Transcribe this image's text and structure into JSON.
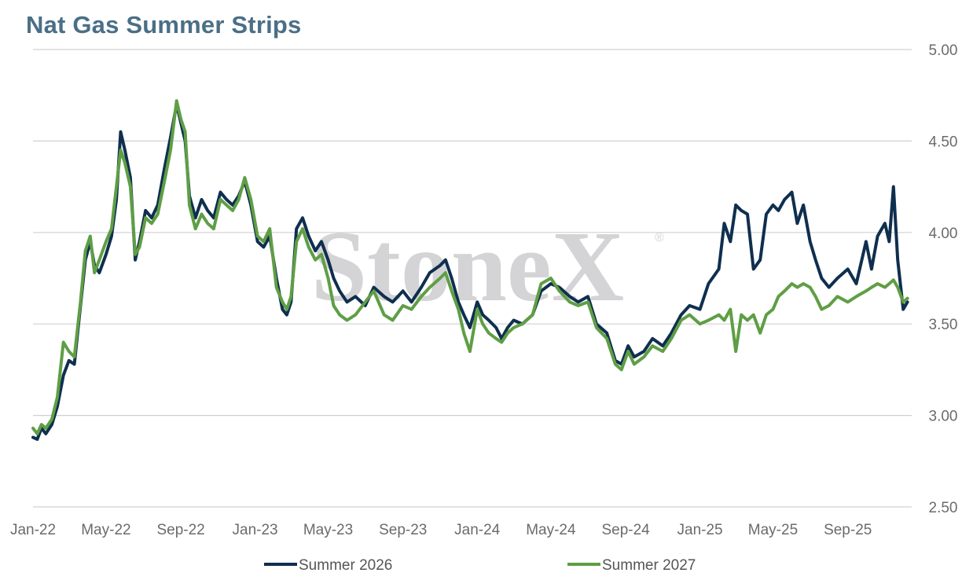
{
  "chart_data": {
    "type": "line",
    "title": "Nat Gas Summer Strips",
    "watermark": "StoneX",
    "watermark_mark": "®",
    "x_tick_labels": [
      "Jan-22",
      "May-22",
      "Sep-22",
      "Jan-23",
      "May-23",
      "Sep-23",
      "Jan-24",
      "May-24",
      "Sep-24",
      "Jan-25",
      "May-25",
      "Sep-25"
    ],
    "y_tick_labels": [
      "5.00",
      "4.50",
      "4.00",
      "3.50",
      "3.00",
      "2.50"
    ],
    "y_ticks": [
      5.0,
      4.5,
      4.0,
      3.5,
      3.0,
      2.5
    ],
    "ylim": [
      2.5,
      5.0
    ],
    "xlim": [
      "2022-01-01",
      "2025-12-15"
    ],
    "grid": true,
    "legend_position": "bottom",
    "series": [
      {
        "name": "Summer 2026",
        "color": "#0f2f4f",
        "points": [
          [
            "2022-01-01",
            2.88
          ],
          [
            "2022-01-08",
            2.87
          ],
          [
            "2022-01-15",
            2.93
          ],
          [
            "2022-01-22",
            2.9
          ],
          [
            "2022-02-01",
            2.95
          ],
          [
            "2022-02-10",
            3.05
          ],
          [
            "2022-02-20",
            3.22
          ],
          [
            "2022-03-01",
            3.3
          ],
          [
            "2022-03-10",
            3.28
          ],
          [
            "2022-03-20",
            3.6
          ],
          [
            "2022-03-28",
            3.85
          ],
          [
            "2022-04-05",
            3.95
          ],
          [
            "2022-04-12",
            3.82
          ],
          [
            "2022-04-20",
            3.78
          ],
          [
            "2022-05-01",
            3.88
          ],
          [
            "2022-05-10",
            3.98
          ],
          [
            "2022-05-18",
            4.18
          ],
          [
            "2022-05-25",
            4.55
          ],
          [
            "2022-06-01",
            4.45
          ],
          [
            "2022-06-10",
            4.3
          ],
          [
            "2022-06-18",
            3.85
          ],
          [
            "2022-06-25",
            3.95
          ],
          [
            "2022-07-05",
            4.12
          ],
          [
            "2022-07-15",
            4.08
          ],
          [
            "2022-07-25",
            4.15
          ],
          [
            "2022-08-05",
            4.35
          ],
          [
            "2022-08-15",
            4.52
          ],
          [
            "2022-08-25",
            4.7
          ],
          [
            "2022-09-01",
            4.6
          ],
          [
            "2022-09-08",
            4.5
          ],
          [
            "2022-09-15",
            4.2
          ],
          [
            "2022-09-25",
            4.08
          ],
          [
            "2022-10-05",
            4.18
          ],
          [
            "2022-10-15",
            4.12
          ],
          [
            "2022-10-25",
            4.08
          ],
          [
            "2022-11-05",
            4.22
          ],
          [
            "2022-11-15",
            4.18
          ],
          [
            "2022-11-25",
            4.15
          ],
          [
            "2022-12-05",
            4.2
          ],
          [
            "2022-12-15",
            4.28
          ],
          [
            "2022-12-25",
            4.15
          ],
          [
            "2023-01-05",
            3.95
          ],
          [
            "2023-01-15",
            3.92
          ],
          [
            "2023-01-25",
            3.98
          ],
          [
            "2023-02-05",
            3.75
          ],
          [
            "2023-02-15",
            3.58
          ],
          [
            "2023-02-22",
            3.55
          ],
          [
            "2023-03-01",
            3.62
          ],
          [
            "2023-03-10",
            4.02
          ],
          [
            "2023-03-20",
            4.08
          ],
          [
            "2023-03-30",
            3.98
          ],
          [
            "2023-04-10",
            3.9
          ],
          [
            "2023-04-20",
            3.95
          ],
          [
            "2023-05-01",
            3.85
          ],
          [
            "2023-05-10",
            3.75
          ],
          [
            "2023-05-20",
            3.68
          ],
          [
            "2023-06-01",
            3.62
          ],
          [
            "2023-06-15",
            3.65
          ],
          [
            "2023-07-01",
            3.6
          ],
          [
            "2023-07-15",
            3.7
          ],
          [
            "2023-08-01",
            3.65
          ],
          [
            "2023-08-15",
            3.62
          ],
          [
            "2023-09-01",
            3.68
          ],
          [
            "2023-09-15",
            3.62
          ],
          [
            "2023-10-01",
            3.7
          ],
          [
            "2023-10-15",
            3.78
          ],
          [
            "2023-11-01",
            3.82
          ],
          [
            "2023-11-10",
            3.85
          ],
          [
            "2023-11-20",
            3.75
          ],
          [
            "2023-12-01",
            3.62
          ],
          [
            "2023-12-10",
            3.55
          ],
          [
            "2023-12-20",
            3.48
          ],
          [
            "2024-01-01",
            3.62
          ],
          [
            "2024-01-10",
            3.55
          ],
          [
            "2024-01-20",
            3.52
          ],
          [
            "2024-02-01",
            3.48
          ],
          [
            "2024-02-10",
            3.42
          ],
          [
            "2024-02-20",
            3.48
          ],
          [
            "2024-03-01",
            3.52
          ],
          [
            "2024-03-15",
            3.5
          ],
          [
            "2024-04-01",
            3.55
          ],
          [
            "2024-04-15",
            3.68
          ],
          [
            "2024-05-01",
            3.72
          ],
          [
            "2024-05-15",
            3.7
          ],
          [
            "2024-06-01",
            3.65
          ],
          [
            "2024-06-15",
            3.62
          ],
          [
            "2024-07-01",
            3.65
          ],
          [
            "2024-07-15",
            3.5
          ],
          [
            "2024-08-01",
            3.45
          ],
          [
            "2024-08-15",
            3.3
          ],
          [
            "2024-08-25",
            3.28
          ],
          [
            "2024-09-05",
            3.38
          ],
          [
            "2024-09-15",
            3.32
          ],
          [
            "2024-10-01",
            3.35
          ],
          [
            "2024-10-15",
            3.42
          ],
          [
            "2024-11-01",
            3.38
          ],
          [
            "2024-11-15",
            3.45
          ],
          [
            "2024-12-01",
            3.55
          ],
          [
            "2024-12-15",
            3.6
          ],
          [
            "2025-01-01",
            3.58
          ],
          [
            "2025-01-15",
            3.72
          ],
          [
            "2025-02-01",
            3.8
          ],
          [
            "2025-02-10",
            4.05
          ],
          [
            "2025-02-20",
            3.95
          ],
          [
            "2025-03-01",
            4.15
          ],
          [
            "2025-03-10",
            4.12
          ],
          [
            "2025-03-20",
            4.1
          ],
          [
            "2025-03-30",
            3.8
          ],
          [
            "2025-04-10",
            3.85
          ],
          [
            "2025-04-20",
            4.1
          ],
          [
            "2025-05-01",
            4.15
          ],
          [
            "2025-05-10",
            4.12
          ],
          [
            "2025-05-20",
            4.18
          ],
          [
            "2025-06-01",
            4.22
          ],
          [
            "2025-06-10",
            4.05
          ],
          [
            "2025-06-20",
            4.15
          ],
          [
            "2025-07-01",
            3.95
          ],
          [
            "2025-07-10",
            3.85
          ],
          [
            "2025-07-20",
            3.75
          ],
          [
            "2025-08-01",
            3.7
          ],
          [
            "2025-08-15",
            3.75
          ],
          [
            "2025-09-01",
            3.8
          ],
          [
            "2025-09-15",
            3.72
          ],
          [
            "2025-10-01",
            3.95
          ],
          [
            "2025-10-10",
            3.8
          ],
          [
            "2025-10-20",
            3.98
          ],
          [
            "2025-11-01",
            4.05
          ],
          [
            "2025-11-08",
            3.95
          ],
          [
            "2025-11-15",
            4.25
          ],
          [
            "2025-11-22",
            3.85
          ],
          [
            "2025-12-01",
            3.58
          ],
          [
            "2025-12-08",
            3.62
          ]
        ]
      },
      {
        "name": "Summer 2027",
        "color": "#5f9e45",
        "points": [
          [
            "2022-01-01",
            2.93
          ],
          [
            "2022-01-08",
            2.9
          ],
          [
            "2022-01-15",
            2.95
          ],
          [
            "2022-01-22",
            2.93
          ],
          [
            "2022-02-01",
            2.98
          ],
          [
            "2022-02-10",
            3.1
          ],
          [
            "2022-02-20",
            3.4
          ],
          [
            "2022-03-01",
            3.35
          ],
          [
            "2022-03-10",
            3.32
          ],
          [
            "2022-03-20",
            3.62
          ],
          [
            "2022-03-28",
            3.9
          ],
          [
            "2022-04-05",
            3.98
          ],
          [
            "2022-04-12",
            3.78
          ],
          [
            "2022-04-20",
            3.85
          ],
          [
            "2022-05-01",
            3.95
          ],
          [
            "2022-05-10",
            4.02
          ],
          [
            "2022-05-18",
            4.25
          ],
          [
            "2022-05-25",
            4.45
          ],
          [
            "2022-06-01",
            4.38
          ],
          [
            "2022-06-10",
            4.25
          ],
          [
            "2022-06-18",
            3.88
          ],
          [
            "2022-06-25",
            3.92
          ],
          [
            "2022-07-05",
            4.08
          ],
          [
            "2022-07-15",
            4.05
          ],
          [
            "2022-07-25",
            4.1
          ],
          [
            "2022-08-05",
            4.28
          ],
          [
            "2022-08-15",
            4.45
          ],
          [
            "2022-08-25",
            4.72
          ],
          [
            "2022-09-01",
            4.62
          ],
          [
            "2022-09-08",
            4.55
          ],
          [
            "2022-09-15",
            4.15
          ],
          [
            "2022-09-25",
            4.02
          ],
          [
            "2022-10-05",
            4.1
          ],
          [
            "2022-10-15",
            4.05
          ],
          [
            "2022-10-25",
            4.02
          ],
          [
            "2022-11-05",
            4.18
          ],
          [
            "2022-11-15",
            4.15
          ],
          [
            "2022-11-25",
            4.12
          ],
          [
            "2022-12-05",
            4.18
          ],
          [
            "2022-12-15",
            4.3
          ],
          [
            "2022-12-25",
            4.18
          ],
          [
            "2023-01-05",
            3.98
          ],
          [
            "2023-01-15",
            3.95
          ],
          [
            "2023-01-25",
            4.02
          ],
          [
            "2023-02-05",
            3.7
          ],
          [
            "2023-02-15",
            3.62
          ],
          [
            "2023-02-22",
            3.58
          ],
          [
            "2023-03-01",
            3.65
          ],
          [
            "2023-03-10",
            3.95
          ],
          [
            "2023-03-20",
            4.02
          ],
          [
            "2023-03-30",
            3.92
          ],
          [
            "2023-04-10",
            3.85
          ],
          [
            "2023-04-20",
            3.88
          ],
          [
            "2023-05-01",
            3.75
          ],
          [
            "2023-05-10",
            3.6
          ],
          [
            "2023-05-20",
            3.55
          ],
          [
            "2023-06-01",
            3.52
          ],
          [
            "2023-06-15",
            3.55
          ],
          [
            "2023-07-01",
            3.62
          ],
          [
            "2023-07-15",
            3.68
          ],
          [
            "2023-08-01",
            3.55
          ],
          [
            "2023-08-15",
            3.52
          ],
          [
            "2023-09-01",
            3.6
          ],
          [
            "2023-09-15",
            3.58
          ],
          [
            "2023-10-01",
            3.65
          ],
          [
            "2023-10-15",
            3.7
          ],
          [
            "2023-11-01",
            3.75
          ],
          [
            "2023-11-10",
            3.78
          ],
          [
            "2023-11-20",
            3.68
          ],
          [
            "2023-12-01",
            3.58
          ],
          [
            "2023-12-10",
            3.45
          ],
          [
            "2023-12-20",
            3.35
          ],
          [
            "2024-01-01",
            3.58
          ],
          [
            "2024-01-10",
            3.5
          ],
          [
            "2024-01-20",
            3.45
          ],
          [
            "2024-02-01",
            3.42
          ],
          [
            "2024-02-10",
            3.4
          ],
          [
            "2024-02-20",
            3.45
          ],
          [
            "2024-03-01",
            3.48
          ],
          [
            "2024-03-15",
            3.5
          ],
          [
            "2024-04-01",
            3.55
          ],
          [
            "2024-04-15",
            3.72
          ],
          [
            "2024-05-01",
            3.75
          ],
          [
            "2024-05-15",
            3.68
          ],
          [
            "2024-06-01",
            3.62
          ],
          [
            "2024-06-15",
            3.6
          ],
          [
            "2024-07-01",
            3.62
          ],
          [
            "2024-07-15",
            3.48
          ],
          [
            "2024-08-01",
            3.42
          ],
          [
            "2024-08-15",
            3.28
          ],
          [
            "2024-08-25",
            3.25
          ],
          [
            "2024-09-05",
            3.35
          ],
          [
            "2024-09-15",
            3.28
          ],
          [
            "2024-10-01",
            3.32
          ],
          [
            "2024-10-15",
            3.38
          ],
          [
            "2024-11-01",
            3.35
          ],
          [
            "2024-11-15",
            3.42
          ],
          [
            "2024-12-01",
            3.52
          ],
          [
            "2024-12-15",
            3.55
          ],
          [
            "2025-01-01",
            3.5
          ],
          [
            "2025-01-15",
            3.52
          ],
          [
            "2025-02-01",
            3.55
          ],
          [
            "2025-02-10",
            3.52
          ],
          [
            "2025-02-20",
            3.58
          ],
          [
            "2025-03-01",
            3.35
          ],
          [
            "2025-03-10",
            3.55
          ],
          [
            "2025-03-20",
            3.52
          ],
          [
            "2025-03-30",
            3.55
          ],
          [
            "2025-04-10",
            3.45
          ],
          [
            "2025-04-20",
            3.55
          ],
          [
            "2025-05-01",
            3.58
          ],
          [
            "2025-05-10",
            3.65
          ],
          [
            "2025-05-20",
            3.68
          ],
          [
            "2025-06-01",
            3.72
          ],
          [
            "2025-06-10",
            3.7
          ],
          [
            "2025-06-20",
            3.72
          ],
          [
            "2025-07-01",
            3.7
          ],
          [
            "2025-07-10",
            3.65
          ],
          [
            "2025-07-20",
            3.58
          ],
          [
            "2025-08-01",
            3.6
          ],
          [
            "2025-08-15",
            3.65
          ],
          [
            "2025-09-01",
            3.62
          ],
          [
            "2025-09-15",
            3.65
          ],
          [
            "2025-10-01",
            3.68
          ],
          [
            "2025-10-10",
            3.7
          ],
          [
            "2025-10-20",
            3.72
          ],
          [
            "2025-11-01",
            3.7
          ],
          [
            "2025-11-08",
            3.72
          ],
          [
            "2025-11-15",
            3.74
          ],
          [
            "2025-11-22",
            3.7
          ],
          [
            "2025-12-01",
            3.62
          ],
          [
            "2025-12-08",
            3.64
          ]
        ]
      }
    ]
  }
}
